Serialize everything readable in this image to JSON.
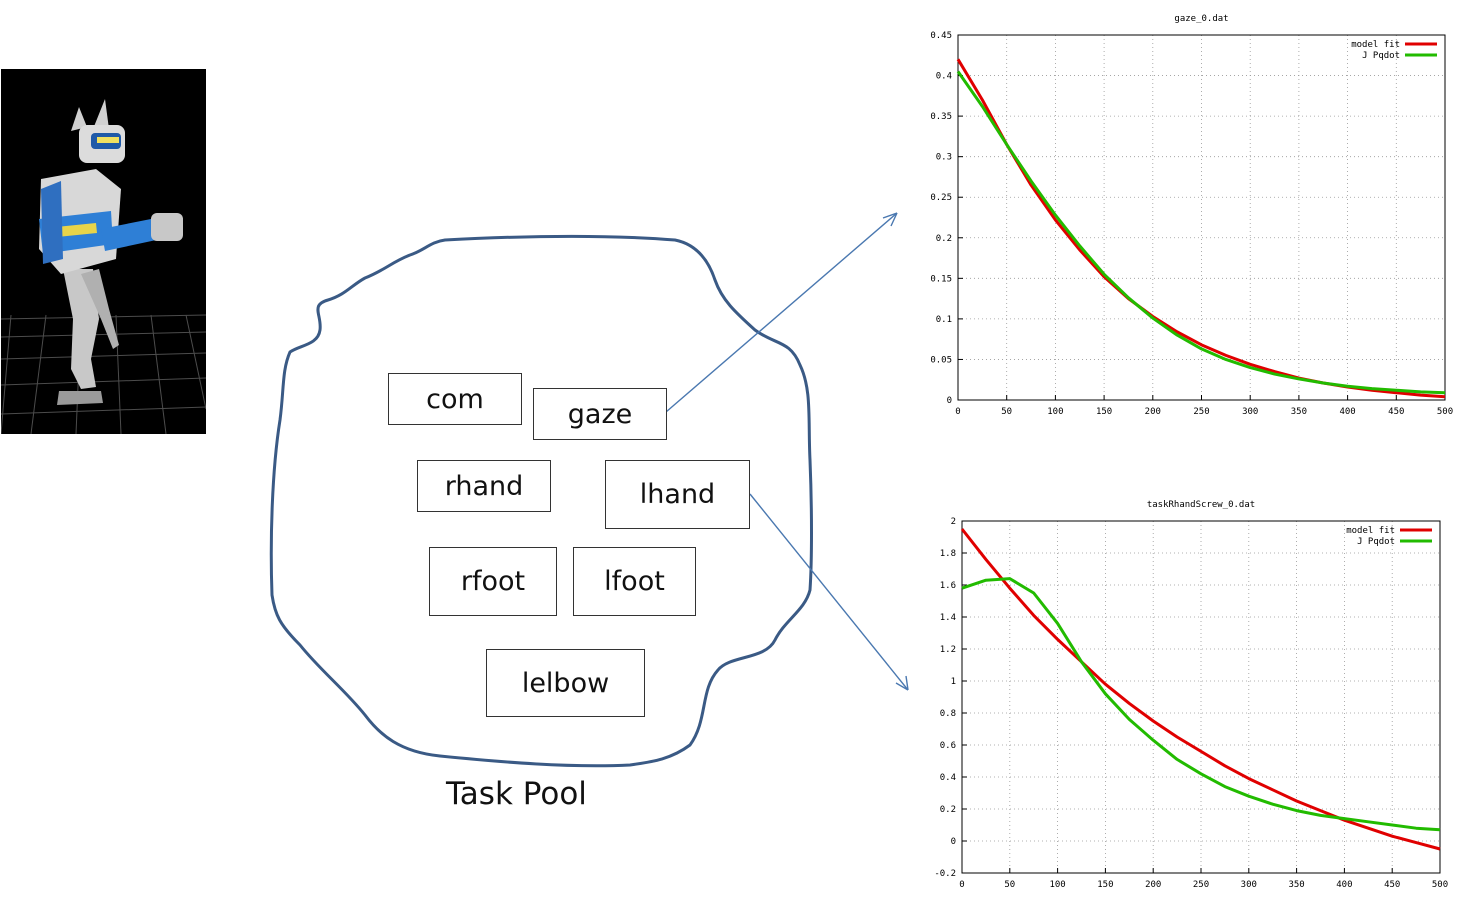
{
  "task_pool": {
    "label": "Task Pool",
    "tasks": [
      "com",
      "gaze",
      "rhand",
      "lhand",
      "rfoot",
      "lfoot",
      "lelbow"
    ]
  },
  "robot": {
    "icon": "humanoid-robot-icon",
    "background": "#000000"
  },
  "colors": {
    "outline": "#3a5a85",
    "arrow": "#4a78b0",
    "model_fit": "#e00000",
    "jpqdot": "#22bb00"
  },
  "chart_data": [
    {
      "type": "line",
      "title": "gaze_0.dat",
      "xlim": [
        0,
        500
      ],
      "ylim": [
        0,
        0.45
      ],
      "x_ticks": [
        0,
        50,
        100,
        150,
        200,
        250,
        300,
        350,
        400,
        450,
        500
      ],
      "y_ticks": [
        0,
        0.05,
        0.1,
        0.15,
        0.2,
        0.25,
        0.3,
        0.35,
        0.4,
        0.45
      ],
      "grid": true,
      "legend": "top-right",
      "x": [
        0,
        25,
        50,
        75,
        100,
        125,
        150,
        175,
        200,
        225,
        250,
        275,
        300,
        325,
        350,
        375,
        400,
        425,
        450,
        475,
        500
      ],
      "series": [
        {
          "name": "model fit",
          "color": "#e00000",
          "values": [
            0.42,
            0.37,
            0.315,
            0.265,
            0.222,
            0.185,
            0.152,
            0.125,
            0.103,
            0.084,
            0.068,
            0.055,
            0.044,
            0.035,
            0.027,
            0.021,
            0.016,
            0.012,
            0.009,
            0.006,
            0.004
          ]
        },
        {
          "name": "J Pqdot",
          "color": "#22bb00",
          "values": [
            0.405,
            0.362,
            0.315,
            0.27,
            0.228,
            0.19,
            0.155,
            0.126,
            0.101,
            0.08,
            0.063,
            0.05,
            0.04,
            0.032,
            0.026,
            0.021,
            0.017,
            0.014,
            0.012,
            0.01,
            0.009
          ]
        }
      ]
    },
    {
      "type": "line",
      "title": "taskRhandScrew_0.dat",
      "xlim": [
        0,
        500
      ],
      "ylim": [
        -0.2,
        2
      ],
      "x_ticks": [
        0,
        50,
        100,
        150,
        200,
        250,
        300,
        350,
        400,
        450,
        500
      ],
      "y_ticks": [
        -0.2,
        0,
        0.2,
        0.4,
        0.6,
        0.8,
        1,
        1.2,
        1.4,
        1.6,
        1.8,
        2
      ],
      "grid": true,
      "legend": "top-right",
      "x": [
        0,
        25,
        50,
        75,
        100,
        125,
        150,
        175,
        200,
        225,
        250,
        275,
        300,
        325,
        350,
        375,
        400,
        425,
        450,
        475,
        500
      ],
      "series": [
        {
          "name": "model fit",
          "color": "#e00000",
          "values": [
            1.95,
            1.76,
            1.58,
            1.41,
            1.26,
            1.12,
            0.98,
            0.86,
            0.75,
            0.65,
            0.56,
            0.47,
            0.39,
            0.32,
            0.25,
            0.19,
            0.13,
            0.08,
            0.03,
            -0.01,
            -0.05
          ]
        },
        {
          "name": "J Pqdot",
          "color": "#22bb00",
          "values": [
            1.58,
            1.63,
            1.64,
            1.55,
            1.36,
            1.12,
            0.92,
            0.76,
            0.63,
            0.51,
            0.42,
            0.34,
            0.28,
            0.23,
            0.19,
            0.16,
            0.14,
            0.12,
            0.1,
            0.08,
            0.07
          ]
        }
      ]
    }
  ]
}
